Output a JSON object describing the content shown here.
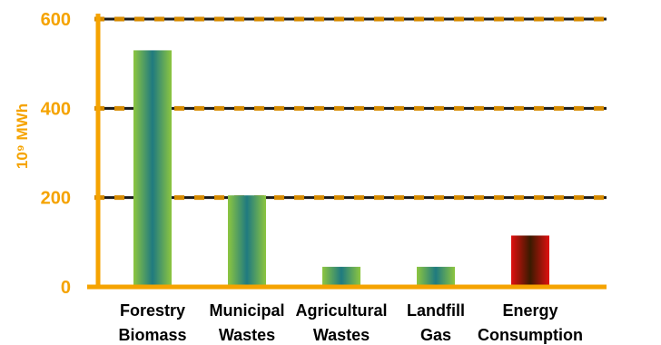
{
  "chart_data": {
    "type": "bar",
    "title": "",
    "xlabel": "",
    "ylabel": "10⁹ MWh",
    "ylim": [
      0,
      600
    ],
    "yticks": [
      "0",
      "200",
      "400",
      "600"
    ],
    "grid": true,
    "categories": [
      [
        "Forestry",
        "Biomass"
      ],
      [
        "Municipal",
        "Wastes"
      ],
      [
        "Agricultural",
        "Wastes"
      ],
      [
        "Landfill",
        "Gas"
      ],
      [
        "Energy",
        "Consumption"
      ]
    ],
    "values": [
      530,
      205,
      45,
      45,
      115
    ],
    "colors": {
      "axis": "#f5a300",
      "grid_dash": "#d58a00",
      "grid_gap": "#1a1a1a",
      "resource_bar": [
        "#8dc63f",
        "#1f7a80"
      ],
      "consumption_bar": [
        "#e01010",
        "#3a1a00"
      ]
    }
  }
}
